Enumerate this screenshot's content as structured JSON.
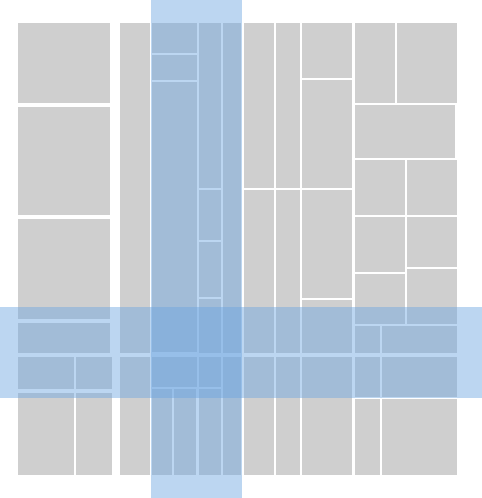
{
  "colors": {
    "background": "#ffffff",
    "cell": "#cfcfcf",
    "gap": "#ffffff",
    "highlight": "#6aa3e0",
    "highlight_opacity": 0.45
  },
  "treemap": {
    "highlight_row": "horizontal-band",
    "highlight_column": "vertical-band"
  }
}
